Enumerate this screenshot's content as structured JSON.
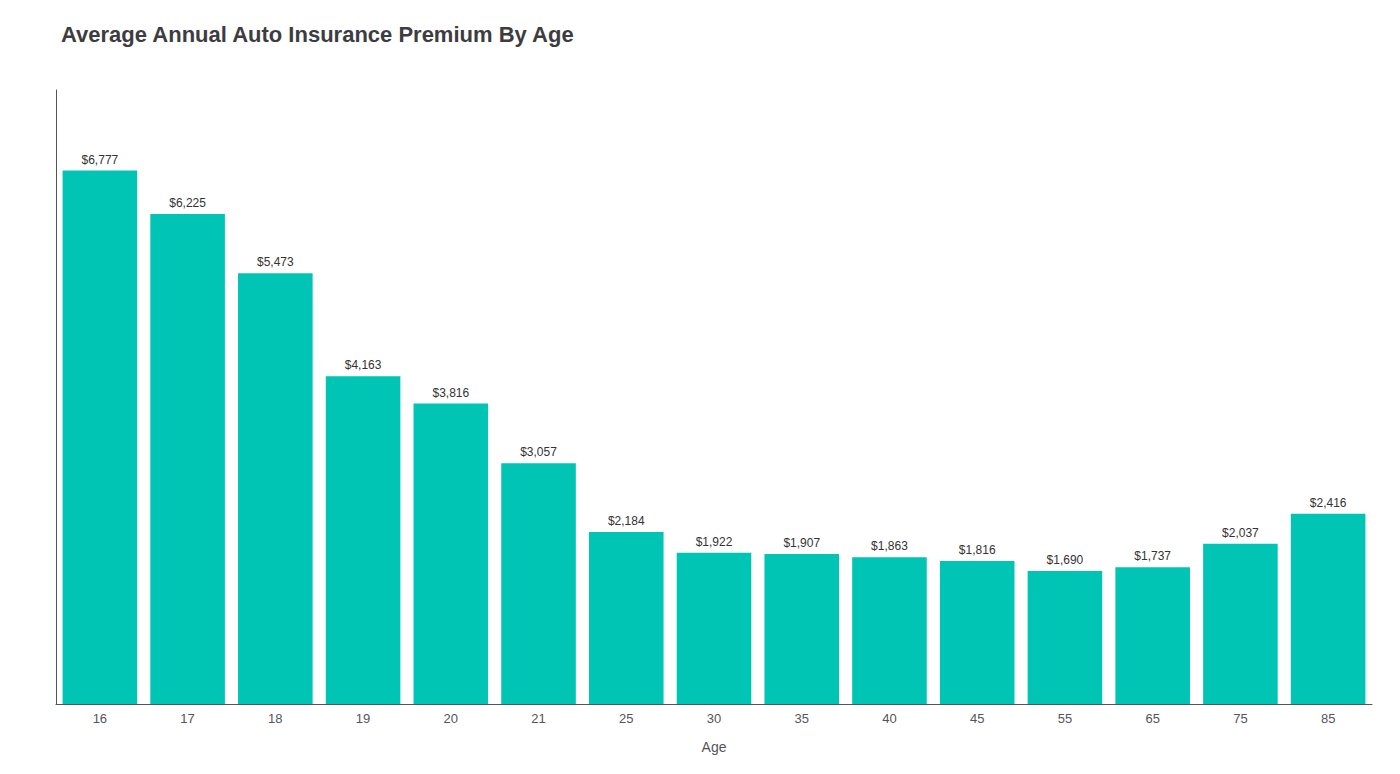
{
  "chart_data": {
    "type": "bar",
    "title": "Average Annual Auto Insurance Premium By Age",
    "xlabel": "Age",
    "categories": [
      "16",
      "17",
      "18",
      "19",
      "20",
      "21",
      "25",
      "30",
      "35",
      "40",
      "45",
      "55",
      "65",
      "75",
      "85"
    ],
    "values": [
      6777,
      6225,
      5473,
      4163,
      3816,
      3057,
      2184,
      1922,
      1907,
      1863,
      1816,
      1690,
      1737,
      2037,
      2416
    ],
    "value_labels": [
      "$6,777",
      "$6,225",
      "$5,473",
      "$4,163",
      "$3,816",
      "$3,057",
      "$2,184",
      "$1,922",
      "$1,907",
      "$1,863",
      "$1,816",
      "$1,690",
      "$1,737",
      "$2,037",
      "$2,416"
    ],
    "data_labels": true,
    "color": "#00C4B4",
    "ylim": [
      0,
      7800
    ],
    "grid": false,
    "tick_labels": "x"
  }
}
